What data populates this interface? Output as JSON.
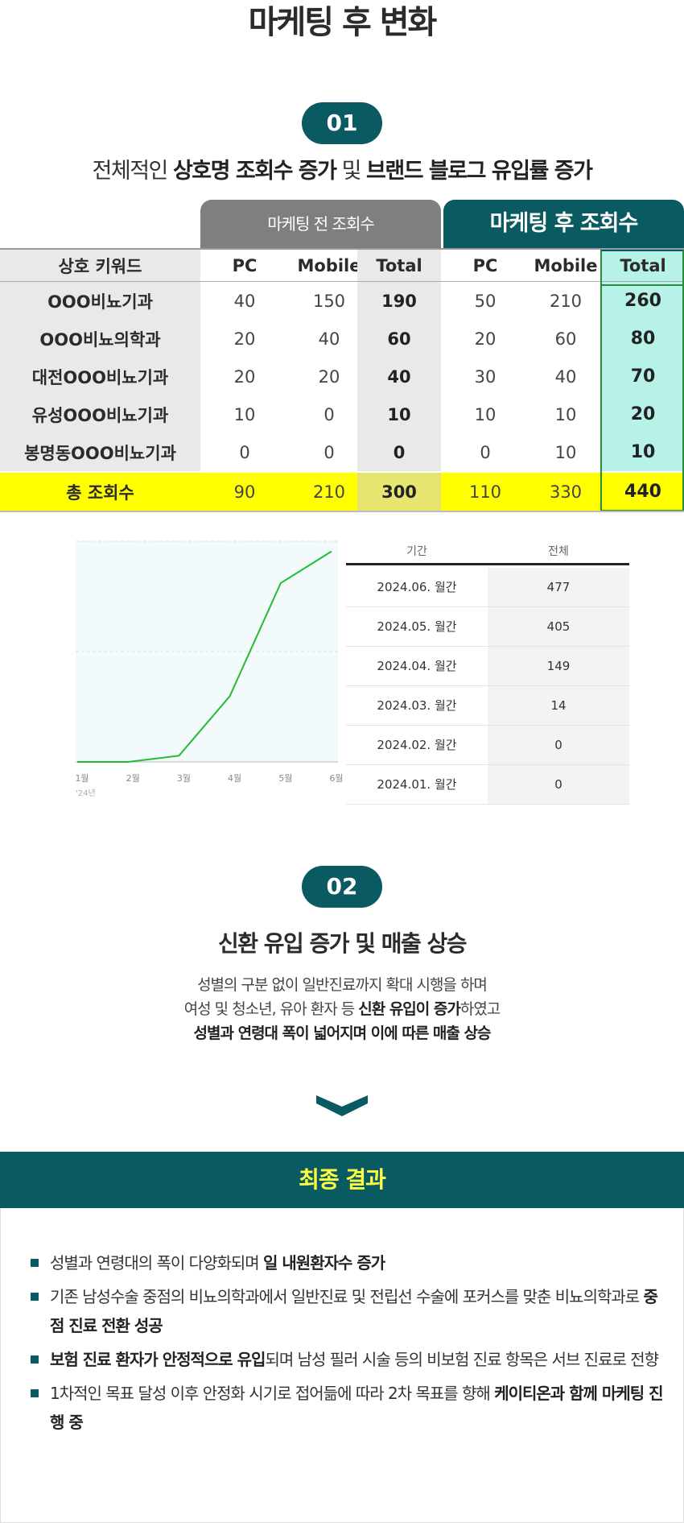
{
  "title": "마케팅 후 변화",
  "section1": {
    "num": "01",
    "sub_pre": "전체적인 ",
    "sub_b1": "상호명 조회수 증가",
    "sub_mid": " 및 ",
    "sub_b2": "브랜드 블로그 유입률 증가"
  },
  "table": {
    "before_label": "마케팅 전 조회수",
    "after_label": "마케팅 후 조회수",
    "headers": [
      "상호 키워드",
      "PC",
      "Mobile",
      "Total",
      "PC",
      "Mobile",
      "Total"
    ],
    "rows": [
      [
        "OOO비뇨기과",
        "40",
        "150",
        "190",
        "50",
        "210",
        "260"
      ],
      [
        "OOO비뇨의학과",
        "20",
        "40",
        "60",
        "20",
        "60",
        "80"
      ],
      [
        "대전OOO비뇨기과",
        "20",
        "20",
        "40",
        "30",
        "40",
        "70"
      ],
      [
        "유성OOO비뇨기과",
        "10",
        "0",
        "10",
        "10",
        "10",
        "20"
      ],
      [
        "봉명동OOO비뇨기과",
        "0",
        "0",
        "0",
        "0",
        "10",
        "10"
      ]
    ],
    "total": [
      "총 조회수",
      "90",
      "210",
      "300",
      "110",
      "330",
      "440"
    ]
  },
  "chart_data": {
    "type": "line",
    "categories": [
      "1월",
      "2월",
      "3월",
      "4월",
      "5월",
      "6월"
    ],
    "year_label": "'24년",
    "values": [
      0,
      0,
      14,
      149,
      405,
      477
    ],
    "ylim": [
      0,
      500
    ],
    "colors": {
      "line": "#22bb33",
      "fill": "#f3fafc",
      "grid": "#cfe8d2"
    }
  },
  "period_table": {
    "headers": [
      "기간",
      "전체"
    ],
    "rows": [
      [
        "2024.06. 월간",
        "477"
      ],
      [
        "2024.05. 월간",
        "405"
      ],
      [
        "2024.04. 월간",
        "149"
      ],
      [
        "2024.03. 월간",
        "14"
      ],
      [
        "2024.02. 월간",
        "0"
      ],
      [
        "2024.01. 월간",
        "0"
      ]
    ]
  },
  "section2": {
    "num": "02",
    "title": "신환 유입 증가 및 매출 상승",
    "line1": "성별의 구분 없이 일반진료까지 확대 시행을 하며",
    "line2_pre": "여성 및 청소년, 유아 환자 등 ",
    "line2_b": "신환 유입이 증가",
    "line2_post": "하였고",
    "line3": "성별과 연령대 폭이 넓어지며 이에 따른 매출 상승"
  },
  "result": {
    "title": "최종 결과",
    "b1_pre": "성별과 연령대의 폭이 다양화되며 ",
    "b1_b": "일 내원환자수 증가",
    "b2_pre": "기존 남성수술 중점의 비뇨의학과에서 일반진료 및 전립선 수술에 포커스를 맞춘 비뇨의학과로 ",
    "b2_b": "중점 진료 전환 성공",
    "b3_b": "보험 진료 환자가 안정적으로 유입",
    "b3_post": "되며 남성 필러 시술 등의 비보험 진료 항목은 서브 진료로 전향",
    "b4_pre": "1차적인 목표 달성 이후 안정화 시기로 접어듦에 따라 2차 목표를 향해 ",
    "b4_b": "케이티온과 함께 마케팅 진행 중"
  },
  "colors": {
    "accent": "#0a5a61",
    "highlight": "#ffff00",
    "mint": "#b6f2e7"
  }
}
